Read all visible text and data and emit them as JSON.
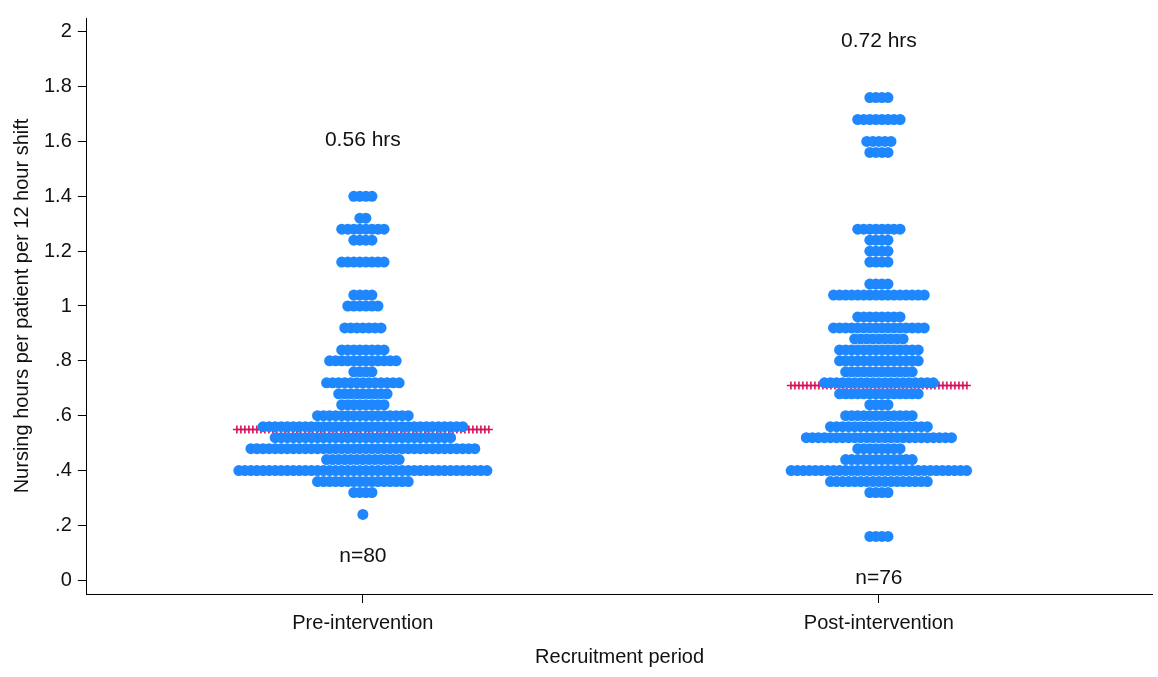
{
  "chart_data": {
    "type": "scatter",
    "xlabel": "Recruitment period",
    "ylabel": "Nursing hours per patient per 12 hour shift",
    "categories": [
      "Pre-intervention",
      "Post-intervention"
    ],
    "ylim": [
      -0.05,
      2.05
    ],
    "yticks": [
      0,
      {
        "value": 0.2,
        "label": ".2"
      },
      {
        "value": 0.4,
        "label": ".4"
      },
      {
        "value": 0.6,
        "label": ".6"
      },
      {
        "value": 0.8,
        "label": ".8"
      },
      1,
      1.2,
      1.4,
      1.6,
      1.8,
      2
    ],
    "grid": false,
    "legend": false,
    "series": [
      {
        "marker": "circle",
        "color": "#1e87fe",
        "x": [
          "Pre-intervention",
          "Pre-intervention",
          "Pre-intervention",
          "Pre-intervention",
          "Pre-intervention",
          "Pre-intervention",
          "Pre-intervention",
          "Pre-intervention",
          "Pre-intervention",
          "Pre-intervention",
          "Pre-intervention",
          "Pre-intervention",
          "Pre-intervention",
          "Pre-intervention",
          "Pre-intervention",
          "Pre-intervention",
          "Pre-intervention",
          "Pre-intervention",
          "Pre-intervention",
          "Pre-intervention",
          "Pre-intervention",
          "Pre-intervention",
          "Pre-intervention",
          "Pre-intervention",
          "Pre-intervention",
          "Pre-intervention",
          "Pre-intervention",
          "Pre-intervention",
          "Pre-intervention",
          "Pre-intervention",
          "Pre-intervention",
          "Pre-intervention",
          "Pre-intervention",
          "Pre-intervention",
          "Pre-intervention",
          "Pre-intervention",
          "Pre-intervention",
          "Pre-intervention",
          "Pre-intervention",
          "Pre-intervention",
          "Pre-intervention",
          "Pre-intervention",
          "Pre-intervention",
          "Pre-intervention",
          "Pre-intervention",
          "Pre-intervention",
          "Pre-intervention",
          "Pre-intervention",
          "Pre-intervention",
          "Pre-intervention",
          "Pre-intervention",
          "Pre-intervention",
          "Pre-intervention",
          "Pre-intervention",
          "Pre-intervention",
          "Pre-intervention",
          "Pre-intervention",
          "Pre-intervention",
          "Pre-intervention",
          "Pre-intervention",
          "Pre-intervention",
          "Pre-intervention",
          "Pre-intervention",
          "Pre-intervention",
          "Pre-intervention",
          "Pre-intervention",
          "Pre-intervention",
          "Pre-intervention",
          "Pre-intervention",
          "Pre-intervention",
          "Pre-intervention",
          "Pre-intervention",
          "Pre-intervention",
          "Pre-intervention",
          "Pre-intervention",
          "Pre-intervention",
          "Pre-intervention",
          "Pre-intervention",
          "Pre-intervention",
          "Pre-intervention",
          "Pre-intervention",
          "Pre-intervention",
          "Pre-intervention",
          "Pre-intervention",
          "Pre-intervention",
          "Pre-intervention",
          "Pre-intervention",
          "Pre-intervention",
          "Pre-intervention",
          "Pre-intervention",
          "Pre-intervention",
          "Pre-intervention",
          "Pre-intervention",
          "Pre-intervention",
          "Pre-intervention",
          "Pre-intervention",
          "Pre-intervention",
          "Pre-intervention",
          "Pre-intervention",
          "Pre-intervention",
          "Pre-intervention",
          "Pre-intervention",
          "Pre-intervention",
          "Pre-intervention",
          "Pre-intervention",
          "Pre-intervention",
          "Pre-intervention",
          "Pre-intervention",
          "Pre-intervention",
          "Pre-intervention",
          "Pre-intervention",
          "Pre-intervention",
          "Pre-intervention",
          "Pre-intervention",
          "Pre-intervention",
          "Pre-intervention",
          "Pre-intervention",
          "Pre-intervention",
          "Pre-intervention",
          "Pre-intervention",
          "Pre-intervention",
          "Pre-intervention",
          "Pre-intervention",
          "Pre-intervention",
          "Pre-intervention",
          "Pre-intervention",
          "Pre-intervention",
          "Pre-intervention",
          "Pre-intervention",
          "Pre-intervention",
          "Pre-intervention",
          "Pre-intervention",
          "Pre-intervention",
          "Pre-intervention",
          "Pre-intervention",
          "Pre-intervention",
          "Pre-intervention",
          "Pre-intervention",
          "Pre-intervention",
          "Pre-intervention",
          "Pre-intervention",
          "Pre-intervention",
          "Pre-intervention",
          "Pre-intervention",
          "Pre-intervention",
          "Pre-intervention",
          "Pre-intervention",
          "Pre-intervention",
          "Pre-intervention",
          "Pre-intervention",
          "Pre-intervention",
          "Pre-intervention",
          "Pre-intervention",
          "Pre-intervention",
          "Pre-intervention",
          "Pre-intervention",
          "Pre-intervention",
          "Pre-intervention",
          "Pre-intervention",
          "Pre-intervention",
          "Pre-intervention",
          "Pre-intervention",
          "Pre-intervention",
          "Pre-intervention",
          "Pre-intervention",
          "Pre-intervention",
          "Pre-intervention",
          "Pre-intervention",
          "Pre-intervention",
          "Pre-intervention",
          "Pre-intervention",
          "Pre-intervention",
          "Pre-intervention",
          "Pre-intervention",
          "Pre-intervention",
          "Pre-intervention",
          "Pre-intervention",
          "Pre-intervention",
          "Pre-intervention",
          "Pre-intervention",
          "Pre-intervention",
          "Pre-intervention",
          "Pre-intervention",
          "Pre-intervention",
          "Pre-intervention",
          "Pre-intervention",
          "Pre-intervention",
          "Pre-intervention",
          "Pre-intervention",
          "Pre-intervention",
          "Pre-intervention",
          "Pre-intervention",
          "Pre-intervention",
          "Pre-intervention",
          "Pre-intervention",
          "Pre-intervention",
          "Pre-intervention",
          "Pre-intervention",
          "Pre-intervention",
          "Pre-intervention",
          "Pre-intervention",
          "Pre-intervention",
          "Pre-intervention",
          "Pre-intervention",
          "Pre-intervention",
          "Pre-intervention",
          "Pre-intervention",
          "Pre-intervention",
          "Pre-intervention",
          "Pre-intervention",
          "Pre-intervention",
          "Pre-intervention",
          "Pre-intervention",
          "Pre-intervention",
          "Pre-intervention",
          "Pre-intervention",
          "Pre-intervention",
          "Pre-intervention",
          "Pre-intervention",
          "Pre-intervention",
          "Pre-intervention",
          "Pre-intervention",
          "Pre-intervention",
          "Pre-intervention",
          "Pre-intervention",
          "Pre-intervention",
          "Pre-intervention",
          "Pre-intervention",
          "Pre-intervention",
          "Pre-intervention",
          "Pre-intervention",
          "Pre-intervention",
          "Pre-intervention",
          "Pre-intervention",
          "Pre-intervention",
          "Pre-intervention",
          "Pre-intervention",
          "Pre-intervention",
          "Pre-intervention",
          "Pre-intervention",
          "Pre-intervention",
          "Pre-intervention",
          "Pre-intervention",
          "Pre-intervention",
          "Pre-intervention",
          "Pre-intervention",
          "Pre-intervention",
          "Pre-intervention",
          "Pre-intervention",
          "Pre-intervention",
          "Pre-intervention",
          "Pre-intervention",
          "Pre-intervention",
          "Pre-intervention",
          "Pre-intervention",
          "Pre-intervention",
          "Pre-intervention",
          "Pre-intervention",
          "Pre-intervention",
          "Pre-intervention",
          "Pre-intervention",
          "Pre-intervention",
          "Pre-intervention",
          "Pre-intervention",
          "Pre-intervention",
          "Pre-intervention",
          "Pre-intervention",
          "Pre-intervention",
          "Pre-intervention",
          "Pre-intervention",
          "Pre-intervention",
          "Pre-intervention",
          "Pre-intervention",
          "Pre-intervention",
          "Pre-intervention",
          "Pre-intervention",
          "Pre-intervention",
          "Pre-intervention",
          "Pre-intervention",
          "Pre-intervention",
          "Pre-intervention",
          "Pre-intervention",
          "Pre-intervention",
          "Pre-intervention",
          "Pre-intervention",
          "Pre-intervention",
          "Pre-intervention",
          "Pre-intervention",
          "Pre-intervention",
          "Pre-intervention",
          "Pre-intervention"
        ],
        "values": [
          1.4,
          1.4,
          1.4,
          1.4,
          1.32,
          1.32,
          1.28,
          1.28,
          1.28,
          1.28,
          1.28,
          1.28,
          1.28,
          1.28,
          1.24,
          1.24,
          1.24,
          1.24,
          1.16,
          1.16,
          1.16,
          1.16,
          1.16,
          1.16,
          1.16,
          1.16,
          1.04,
          1.04,
          1.04,
          1.04,
          1,
          1,
          1,
          1,
          1,
          1,
          0.92,
          0.92,
          0.92,
          0.92,
          0.92,
          0.92,
          0.92,
          0.84,
          0.84,
          0.84,
          0.84,
          0.84,
          0.84,
          0.84,
          0.84,
          0.8,
          0.8,
          0.8,
          0.8,
          0.8,
          0.8,
          0.8,
          0.8,
          0.8,
          0.8,
          0.8,
          0.8,
          0.76,
          0.76,
          0.76,
          0.76,
          0.72,
          0.72,
          0.72,
          0.72,
          0.72,
          0.72,
          0.72,
          0.72,
          0.72,
          0.72,
          0.72,
          0.72,
          0.72,
          0.68,
          0.68,
          0.68,
          0.68,
          0.68,
          0.68,
          0.68,
          0.68,
          0.68,
          0.64,
          0.64,
          0.64,
          0.64,
          0.64,
          0.64,
          0.64,
          0.64,
          0.6,
          0.6,
          0.6,
          0.6,
          0.6,
          0.6,
          0.6,
          0.6,
          0.6,
          0.6,
          0.6,
          0.6,
          0.6,
          0.6,
          0.6,
          0.6,
          0.56,
          0.56,
          0.56,
          0.56,
          0.56,
          0.56,
          0.56,
          0.56,
          0.56,
          0.56,
          0.56,
          0.56,
          0.56,
          0.56,
          0.56,
          0.56,
          0.56,
          0.56,
          0.56,
          0.56,
          0.56,
          0.56,
          0.56,
          0.56,
          0.56,
          0.56,
          0.56,
          0.56,
          0.56,
          0.56,
          0.56,
          0.56,
          0.56,
          0.56,
          0.52,
          0.52,
          0.52,
          0.52,
          0.52,
          0.52,
          0.52,
          0.52,
          0.52,
          0.52,
          0.52,
          0.52,
          0.52,
          0.52,
          0.52,
          0.52,
          0.52,
          0.52,
          0.52,
          0.52,
          0.52,
          0.52,
          0.52,
          0.52,
          0.52,
          0.52,
          0.52,
          0.52,
          0.52,
          0.52,
          0.48,
          0.48,
          0.48,
          0.48,
          0.48,
          0.48,
          0.48,
          0.48,
          0.48,
          0.48,
          0.48,
          0.48,
          0.48,
          0.48,
          0.48,
          0.48,
          0.48,
          0.48,
          0.48,
          0.48,
          0.48,
          0.48,
          0.48,
          0.48,
          0.48,
          0.48,
          0.48,
          0.48,
          0.48,
          0.48,
          0.48,
          0.48,
          0.48,
          0.48,
          0.48,
          0.48,
          0.48,
          0.48,
          0.44,
          0.44,
          0.44,
          0.44,
          0.44,
          0.44,
          0.44,
          0.44,
          0.44,
          0.44,
          0.44,
          0.44,
          0.44,
          0.4,
          0.4,
          0.4,
          0.4,
          0.4,
          0.4,
          0.4,
          0.4,
          0.4,
          0.4,
          0.4,
          0.4,
          0.4,
          0.4,
          0.4,
          0.4,
          0.4,
          0.4,
          0.4,
          0.4,
          0.4,
          0.4,
          0.4,
          0.4,
          0.4,
          0.4,
          0.4,
          0.4,
          0.4,
          0.4,
          0.4,
          0.4,
          0.4,
          0.4,
          0.4,
          0.4,
          0.4,
          0.4,
          0.4,
          0.4,
          0.4,
          0.4,
          0.36,
          0.36,
          0.36,
          0.36,
          0.36,
          0.36,
          0.36,
          0.36,
          0.36,
          0.36,
          0.36,
          0.36,
          0.36,
          0.36,
          0.36,
          0.36,
          0.32,
          0.32,
          0.32,
          0.32,
          0.24
        ]
      },
      {
        "marker": "circle",
        "color": "#1e87fe",
        "x": [
          "Post-intervention",
          "Post-intervention",
          "Post-intervention",
          "Post-intervention",
          "Post-intervention",
          "Post-intervention",
          "Post-intervention",
          "Post-intervention",
          "Post-intervention",
          "Post-intervention",
          "Post-intervention",
          "Post-intervention",
          "Post-intervention",
          "Post-intervention",
          "Post-intervention",
          "Post-intervention",
          "Post-intervention",
          "Post-intervention",
          "Post-intervention",
          "Post-intervention",
          "Post-intervention",
          "Post-intervention",
          "Post-intervention",
          "Post-intervention",
          "Post-intervention",
          "Post-intervention",
          "Post-intervention",
          "Post-intervention",
          "Post-intervention",
          "Post-intervention",
          "Post-intervention",
          "Post-intervention",
          "Post-intervention",
          "Post-intervention",
          "Post-intervention",
          "Post-intervention",
          "Post-intervention",
          "Post-intervention",
          "Post-intervention",
          "Post-intervention",
          "Post-intervention",
          "Post-intervention",
          "Post-intervention",
          "Post-intervention",
          "Post-intervention",
          "Post-intervention",
          "Post-intervention",
          "Post-intervention",
          "Post-intervention",
          "Post-intervention",
          "Post-intervention",
          "Post-intervention",
          "Post-intervention",
          "Post-intervention",
          "Post-intervention",
          "Post-intervention",
          "Post-intervention",
          "Post-intervention",
          "Post-intervention",
          "Post-intervention",
          "Post-intervention",
          "Post-intervention",
          "Post-intervention",
          "Post-intervention",
          "Post-intervention",
          "Post-intervention",
          "Post-intervention",
          "Post-intervention",
          "Post-intervention",
          "Post-intervention",
          "Post-intervention",
          "Post-intervention",
          "Post-intervention",
          "Post-intervention",
          "Post-intervention",
          "Post-intervention",
          "Post-intervention",
          "Post-intervention",
          "Post-intervention",
          "Post-intervention",
          "Post-intervention",
          "Post-intervention",
          "Post-intervention",
          "Post-intervention",
          "Post-intervention",
          "Post-intervention",
          "Post-intervention",
          "Post-intervention",
          "Post-intervention",
          "Post-intervention",
          "Post-intervention",
          "Post-intervention",
          "Post-intervention",
          "Post-intervention",
          "Post-intervention",
          "Post-intervention",
          "Post-intervention",
          "Post-intervention",
          "Post-intervention",
          "Post-intervention",
          "Post-intervention",
          "Post-intervention",
          "Post-intervention",
          "Post-intervention",
          "Post-intervention",
          "Post-intervention",
          "Post-intervention",
          "Post-intervention",
          "Post-intervention",
          "Post-intervention",
          "Post-intervention",
          "Post-intervention",
          "Post-intervention",
          "Post-intervention",
          "Post-intervention",
          "Post-intervention",
          "Post-intervention",
          "Post-intervention",
          "Post-intervention",
          "Post-intervention",
          "Post-intervention",
          "Post-intervention",
          "Post-intervention",
          "Post-intervention",
          "Post-intervention",
          "Post-intervention",
          "Post-intervention",
          "Post-intervention",
          "Post-intervention",
          "Post-intervention",
          "Post-intervention",
          "Post-intervention",
          "Post-intervention",
          "Post-intervention",
          "Post-intervention",
          "Post-intervention",
          "Post-intervention",
          "Post-intervention",
          "Post-intervention",
          "Post-intervention",
          "Post-intervention",
          "Post-intervention",
          "Post-intervention",
          "Post-intervention",
          "Post-intervention",
          "Post-intervention",
          "Post-intervention",
          "Post-intervention",
          "Post-intervention",
          "Post-intervention",
          "Post-intervention",
          "Post-intervention",
          "Post-intervention",
          "Post-intervention",
          "Post-intervention",
          "Post-intervention",
          "Post-intervention",
          "Post-intervention",
          "Post-intervention",
          "Post-intervention",
          "Post-intervention",
          "Post-intervention",
          "Post-intervention",
          "Post-intervention",
          "Post-intervention",
          "Post-intervention",
          "Post-intervention",
          "Post-intervention",
          "Post-intervention",
          "Post-intervention",
          "Post-intervention",
          "Post-intervention",
          "Post-intervention",
          "Post-intervention",
          "Post-intervention",
          "Post-intervention",
          "Post-intervention",
          "Post-intervention",
          "Post-intervention",
          "Post-intervention",
          "Post-intervention",
          "Post-intervention",
          "Post-intervention",
          "Post-intervention",
          "Post-intervention",
          "Post-intervention",
          "Post-intervention",
          "Post-intervention",
          "Post-intervention",
          "Post-intervention",
          "Post-intervention",
          "Post-intervention",
          "Post-intervention",
          "Post-intervention",
          "Post-intervention",
          "Post-intervention",
          "Post-intervention",
          "Post-intervention",
          "Post-intervention",
          "Post-intervention",
          "Post-intervention",
          "Post-intervention",
          "Post-intervention",
          "Post-intervention",
          "Post-intervention",
          "Post-intervention",
          "Post-intervention",
          "Post-intervention",
          "Post-intervention",
          "Post-intervention",
          "Post-intervention",
          "Post-intervention",
          "Post-intervention",
          "Post-intervention",
          "Post-intervention",
          "Post-intervention",
          "Post-intervention",
          "Post-intervention",
          "Post-intervention",
          "Post-intervention",
          "Post-intervention",
          "Post-intervention",
          "Post-intervention",
          "Post-intervention",
          "Post-intervention",
          "Post-intervention",
          "Post-intervention",
          "Post-intervention",
          "Post-intervention",
          "Post-intervention",
          "Post-intervention",
          "Post-intervention",
          "Post-intervention",
          "Post-intervention",
          "Post-intervention",
          "Post-intervention",
          "Post-intervention",
          "Post-intervention",
          "Post-intervention",
          "Post-intervention",
          "Post-intervention",
          "Post-intervention",
          "Post-intervention",
          "Post-intervention",
          "Post-intervention",
          "Post-intervention",
          "Post-intervention",
          "Post-intervention",
          "Post-intervention",
          "Post-intervention",
          "Post-intervention",
          "Post-intervention",
          "Post-intervention",
          "Post-intervention",
          "Post-intervention",
          "Post-intervention",
          "Post-intervention",
          "Post-intervention",
          "Post-intervention",
          "Post-intervention",
          "Post-intervention",
          "Post-intervention",
          "Post-intervention",
          "Post-intervention",
          "Post-intervention",
          "Post-intervention",
          "Post-intervention",
          "Post-intervention",
          "Post-intervention",
          "Post-intervention",
          "Post-intervention",
          "Post-intervention",
          "Post-intervention",
          "Post-intervention",
          "Post-intervention",
          "Post-intervention",
          "Post-intervention",
          "Post-intervention",
          "Post-intervention",
          "Post-intervention",
          "Post-intervention",
          "Post-intervention",
          "Post-intervention",
          "Post-intervention",
          "Post-intervention",
          "Post-intervention",
          "Post-intervention",
          "Post-intervention",
          "Post-intervention",
          "Post-intervention",
          "Post-intervention",
          "Post-intervention",
          "Post-intervention",
          "Post-intervention",
          "Post-intervention",
          "Post-intervention",
          "Post-intervention",
          "Post-intervention",
          "Post-intervention",
          "Post-intervention"
        ],
        "values": [
          1.76,
          1.76,
          1.76,
          1.76,
          1.68,
          1.68,
          1.68,
          1.68,
          1.68,
          1.68,
          1.68,
          1.68,
          1.6,
          1.6,
          1.6,
          1.6,
          1.6,
          1.56,
          1.56,
          1.56,
          1.56,
          1.28,
          1.28,
          1.28,
          1.28,
          1.28,
          1.28,
          1.28,
          1.28,
          1.24,
          1.24,
          1.24,
          1.24,
          1.2,
          1.2,
          1.2,
          1.2,
          1.16,
          1.16,
          1.16,
          1.16,
          1.08,
          1.08,
          1.08,
          1.08,
          1.04,
          1.04,
          1.04,
          1.04,
          1.04,
          1.04,
          1.04,
          1.04,
          1.04,
          1.04,
          1.04,
          1.04,
          1.04,
          1.04,
          1.04,
          1.04,
          0.96,
          0.96,
          0.96,
          0.96,
          0.96,
          0.96,
          0.96,
          0.96,
          0.92,
          0.92,
          0.92,
          0.92,
          0.92,
          0.92,
          0.92,
          0.92,
          0.92,
          0.92,
          0.92,
          0.92,
          0.92,
          0.92,
          0.92,
          0.92,
          0.88,
          0.88,
          0.88,
          0.88,
          0.88,
          0.88,
          0.88,
          0.88,
          0.88,
          0.84,
          0.84,
          0.84,
          0.84,
          0.84,
          0.84,
          0.84,
          0.84,
          0.84,
          0.84,
          0.84,
          0.84,
          0.84,
          0.84,
          0.8,
          0.8,
          0.8,
          0.8,
          0.8,
          0.8,
          0.8,
          0.8,
          0.8,
          0.8,
          0.8,
          0.8,
          0.8,
          0.8,
          0.76,
          0.76,
          0.76,
          0.76,
          0.76,
          0.76,
          0.76,
          0.76,
          0.76,
          0.76,
          0.76,
          0.76,
          0.72,
          0.72,
          0.72,
          0.72,
          0.72,
          0.72,
          0.72,
          0.72,
          0.72,
          0.72,
          0.72,
          0.72,
          0.72,
          0.72,
          0.72,
          0.72,
          0.72,
          0.72,
          0.72,
          0.68,
          0.68,
          0.68,
          0.68,
          0.68,
          0.68,
          0.68,
          0.68,
          0.68,
          0.68,
          0.68,
          0.68,
          0.68,
          0.68,
          0.64,
          0.64,
          0.64,
          0.64,
          0.6,
          0.6,
          0.6,
          0.6,
          0.6,
          0.6,
          0.6,
          0.6,
          0.6,
          0.6,
          0.6,
          0.6,
          0.56,
          0.56,
          0.56,
          0.56,
          0.56,
          0.56,
          0.56,
          0.56,
          0.56,
          0.56,
          0.56,
          0.56,
          0.56,
          0.56,
          0.56,
          0.56,
          0.56,
          0.52,
          0.52,
          0.52,
          0.52,
          0.52,
          0.52,
          0.52,
          0.52,
          0.52,
          0.52,
          0.52,
          0.52,
          0.52,
          0.52,
          0.52,
          0.52,
          0.52,
          0.52,
          0.52,
          0.52,
          0.52,
          0.52,
          0.52,
          0.52,
          0.52,
          0.48,
          0.48,
          0.48,
          0.48,
          0.48,
          0.48,
          0.48,
          0.48,
          0.44,
          0.44,
          0.44,
          0.44,
          0.44,
          0.44,
          0.44,
          0.44,
          0.44,
          0.44,
          0.44,
          0.44,
          0.4,
          0.4,
          0.4,
          0.4,
          0.4,
          0.4,
          0.4,
          0.4,
          0.4,
          0.4,
          0.4,
          0.4,
          0.4,
          0.4,
          0.4,
          0.4,
          0.4,
          0.4,
          0.4,
          0.4,
          0.4,
          0.4,
          0.4,
          0.4,
          0.4,
          0.4,
          0.4,
          0.4,
          0.4,
          0.4,
          0.36,
          0.36,
          0.36,
          0.36,
          0.36,
          0.36,
          0.36,
          0.36,
          0.36,
          0.36,
          0.36,
          0.36,
          0.36,
          0.36,
          0.36,
          0.36,
          0.36,
          0.32,
          0.32,
          0.32,
          0.32,
          0.16,
          0.16,
          0.16,
          0.16
        ]
      },
      {
        "marker": "cross",
        "color": "#d6135a",
        "x": [
          "Pre-intervention",
          "Pre-intervention",
          "Pre-intervention",
          "Pre-intervention",
          "Pre-intervention",
          "Pre-intervention",
          "Pre-intervention",
          "Pre-intervention",
          "Pre-intervention",
          "Pre-intervention",
          "Pre-intervention",
          "Pre-intervention",
          "Pre-intervention",
          "Pre-intervention",
          "Pre-intervention",
          "Pre-intervention",
          "Pre-intervention",
          "Pre-intervention",
          "Pre-intervention",
          "Pre-intervention",
          "Pre-intervention",
          "Pre-intervention",
          "Pre-intervention",
          "Pre-intervention",
          "Pre-intervention",
          "Pre-intervention",
          "Pre-intervention",
          "Pre-intervention",
          "Pre-intervention",
          "Pre-intervention",
          "Pre-intervention",
          "Pre-intervention",
          "Pre-intervention",
          "Pre-intervention",
          "Pre-intervention",
          "Pre-intervention",
          "Pre-intervention",
          "Pre-intervention",
          "Pre-intervention",
          "Pre-intervention",
          "Pre-intervention",
          "Pre-intervention",
          "Pre-intervention",
          "Pre-intervention",
          "Pre-intervention",
          "Pre-intervention",
          "Pre-intervention",
          "Pre-intervention",
          "Pre-intervention",
          "Pre-intervention",
          "Pre-intervention",
          "Pre-intervention",
          "Pre-intervention",
          "Pre-intervention",
          "Pre-intervention",
          "Pre-intervention",
          "Pre-intervention",
          "Pre-intervention",
          "Pre-intervention",
          "Pre-intervention",
          "Pre-intervention",
          "Pre-intervention",
          "Pre-intervention",
          "Pre-intervention",
          "Post-intervention",
          "Post-intervention",
          "Post-intervention",
          "Post-intervention",
          "Post-intervention",
          "Post-intervention",
          "Post-intervention",
          "Post-intervention",
          "Post-intervention",
          "Post-intervention",
          "Post-intervention",
          "Post-intervention",
          "Post-intervention",
          "Post-intervention",
          "Post-intervention",
          "Post-intervention",
          "Post-intervention",
          "Post-intervention",
          "Post-intervention",
          "Post-intervention",
          "Post-intervention",
          "Post-intervention",
          "Post-intervention",
          "Post-intervention",
          "Post-intervention",
          "Post-intervention",
          "Post-intervention",
          "Post-intervention",
          "Post-intervention",
          "Post-intervention",
          "Post-intervention",
          "Post-intervention",
          "Post-intervention",
          "Post-intervention",
          "Post-intervention",
          "Post-intervention",
          "Post-intervention",
          "Post-intervention",
          "Post-intervention",
          "Post-intervention",
          "Post-intervention",
          "Post-intervention",
          "Post-intervention",
          "Post-intervention",
          "Post-intervention"
        ],
        "values": [
          0.55,
          0.55,
          0.55,
          0.55,
          0.55,
          0.55,
          0.55,
          0.55,
          0.55,
          0.55,
          0.55,
          0.55,
          0.55,
          0.55,
          0.55,
          0.55,
          0.55,
          0.55,
          0.55,
          0.55,
          0.55,
          0.55,
          0.55,
          0.55,
          0.55,
          0.55,
          0.55,
          0.55,
          0.55,
          0.55,
          0.55,
          0.55,
          0.55,
          0.55,
          0.55,
          0.55,
          0.55,
          0.55,
          0.55,
          0.55,
          0.55,
          0.55,
          0.55,
          0.55,
          0.55,
          0.55,
          0.55,
          0.55,
          0.55,
          0.55,
          0.55,
          0.55,
          0.55,
          0.55,
          0.55,
          0.55,
          0.55,
          0.55,
          0.55,
          0.55,
          0.55,
          0.55,
          0.55,
          0.55,
          0.71,
          0.71,
          0.71,
          0.71,
          0.71,
          0.71,
          0.71,
          0.71,
          0.71,
          0.71,
          0.71,
          0.71,
          0.71,
          0.71,
          0.71,
          0.71,
          0.71,
          0.71,
          0.71,
          0.71,
          0.71,
          0.71,
          0.71,
          0.71,
          0.71,
          0.71,
          0.71,
          0.71,
          0.71,
          0.71,
          0.71,
          0.71,
          0.71,
          0.71,
          0.71,
          0.71,
          0.71,
          0.71,
          0.71,
          0.71,
          0.71,
          0.71,
          0.71,
          0.71,
          0.71
        ]
      }
    ],
    "annotations": [
      "0.56 hrs",
      "0.72 hrs",
      "n=80",
      "n=76"
    ]
  }
}
